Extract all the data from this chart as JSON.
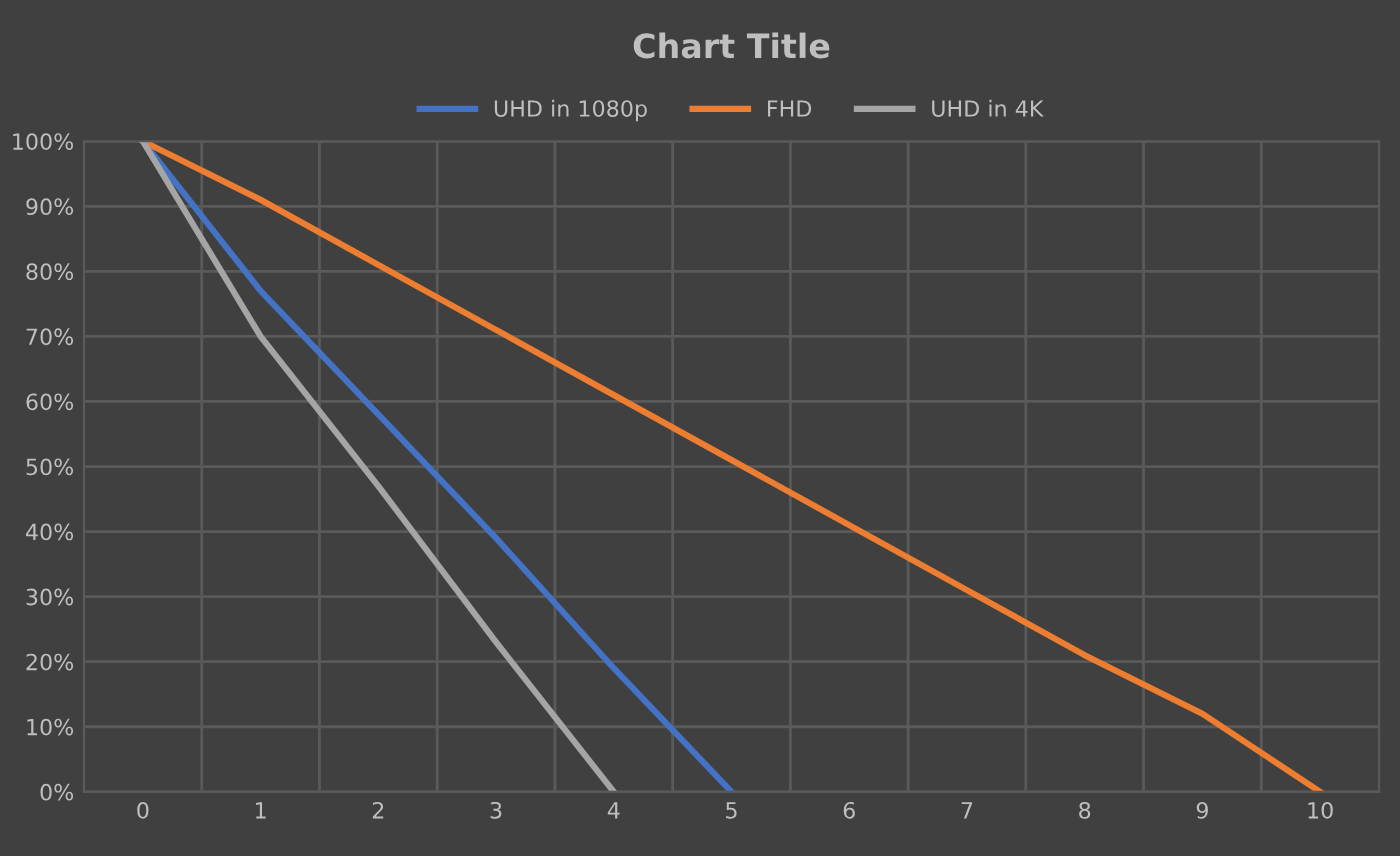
{
  "chart_data": {
    "type": "line",
    "title": "Chart Title",
    "categories": [
      "0",
      "1",
      "2",
      "3",
      "4",
      "5",
      "6",
      "7",
      "8",
      "9",
      "10"
    ],
    "series": [
      {
        "name": "UHD in 1080p",
        "color": "#4472c4",
        "values": [
          100,
          77,
          58,
          39,
          19,
          0,
          null,
          null,
          null,
          null,
          null
        ]
      },
      {
        "name": "FHD",
        "color": "#ed7d31",
        "values": [
          100,
          91,
          81,
          71,
          61,
          51,
          41,
          31,
          21,
          12,
          0
        ]
      },
      {
        "name": "UHD in 4K",
        "color": "#a5a5a5",
        "values": [
          100,
          70,
          47,
          23,
          0,
          null,
          null,
          null,
          null,
          null,
          null
        ]
      }
    ],
    "ylim": [
      0,
      100
    ],
    "yticks": [
      {
        "value": 0,
        "label": "0%"
      },
      {
        "value": 10,
        "label": "10%"
      },
      {
        "value": 20,
        "label": "20%"
      },
      {
        "value": 30,
        "label": "30%"
      },
      {
        "value": 40,
        "label": "40%"
      },
      {
        "value": 50,
        "label": "50%"
      },
      {
        "value": 60,
        "label": "60%"
      },
      {
        "value": 70,
        "label": "70%"
      },
      {
        "value": 80,
        "label": "80%"
      },
      {
        "value": 90,
        "label": "90%"
      },
      {
        "value": 100,
        "label": "100%"
      }
    ],
    "grid": true,
    "legend": "top",
    "marker": "none",
    "line_style": "solid"
  }
}
